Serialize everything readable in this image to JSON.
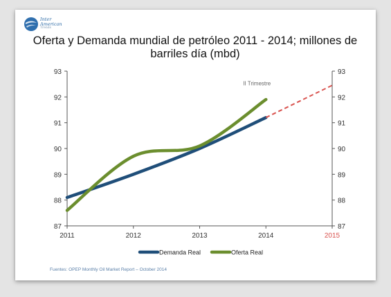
{
  "logo": {
    "line1": "Inter",
    "line2": "American",
    "line3": "Trends",
    "icon": "globe-icon"
  },
  "title": "Oferta y Demanda mundial de petróleo 2011 - 2014; millones de barriles día (mbd)",
  "source": "Fuentes: OPEP Monthly Oil Market Report – October 2014",
  "colors": {
    "demanda": "#1f4e79",
    "oferta": "#6b8e2e",
    "projection": "#d9534f",
    "axis": "#555555",
    "gridline": "#888888"
  },
  "chart_data": {
    "type": "line",
    "x_ticks": [
      "2011",
      "2012",
      "2013",
      "2014",
      "2015"
    ],
    "x_tick_highlight": [
      "2015"
    ],
    "xlim": [
      2011,
      2015
    ],
    "ylim": [
      87,
      93
    ],
    "y_ticks": [
      87,
      88,
      89,
      90,
      91,
      92,
      93
    ],
    "secondary_y_axis": true,
    "grid": false,
    "legend_position": "bottom",
    "annotation": {
      "text": "II Trimestre",
      "x": 2014,
      "y": 92.4
    },
    "series": [
      {
        "name": "Demanda Real",
        "color_key": "demanda",
        "x": [
          2011,
          2012,
          2013,
          2014
        ],
        "y": [
          88.1,
          89.0,
          90.0,
          91.2
        ]
      },
      {
        "name": "Oferta Real",
        "color_key": "oferta",
        "x": [
          2011,
          2012,
          2013,
          2014
        ],
        "y": [
          87.6,
          89.7,
          90.1,
          91.9
        ]
      }
    ],
    "projection": {
      "style": "dashed",
      "color_key": "projection",
      "x": [
        2014,
        2015
      ],
      "y": [
        91.2,
        92.45
      ]
    }
  }
}
